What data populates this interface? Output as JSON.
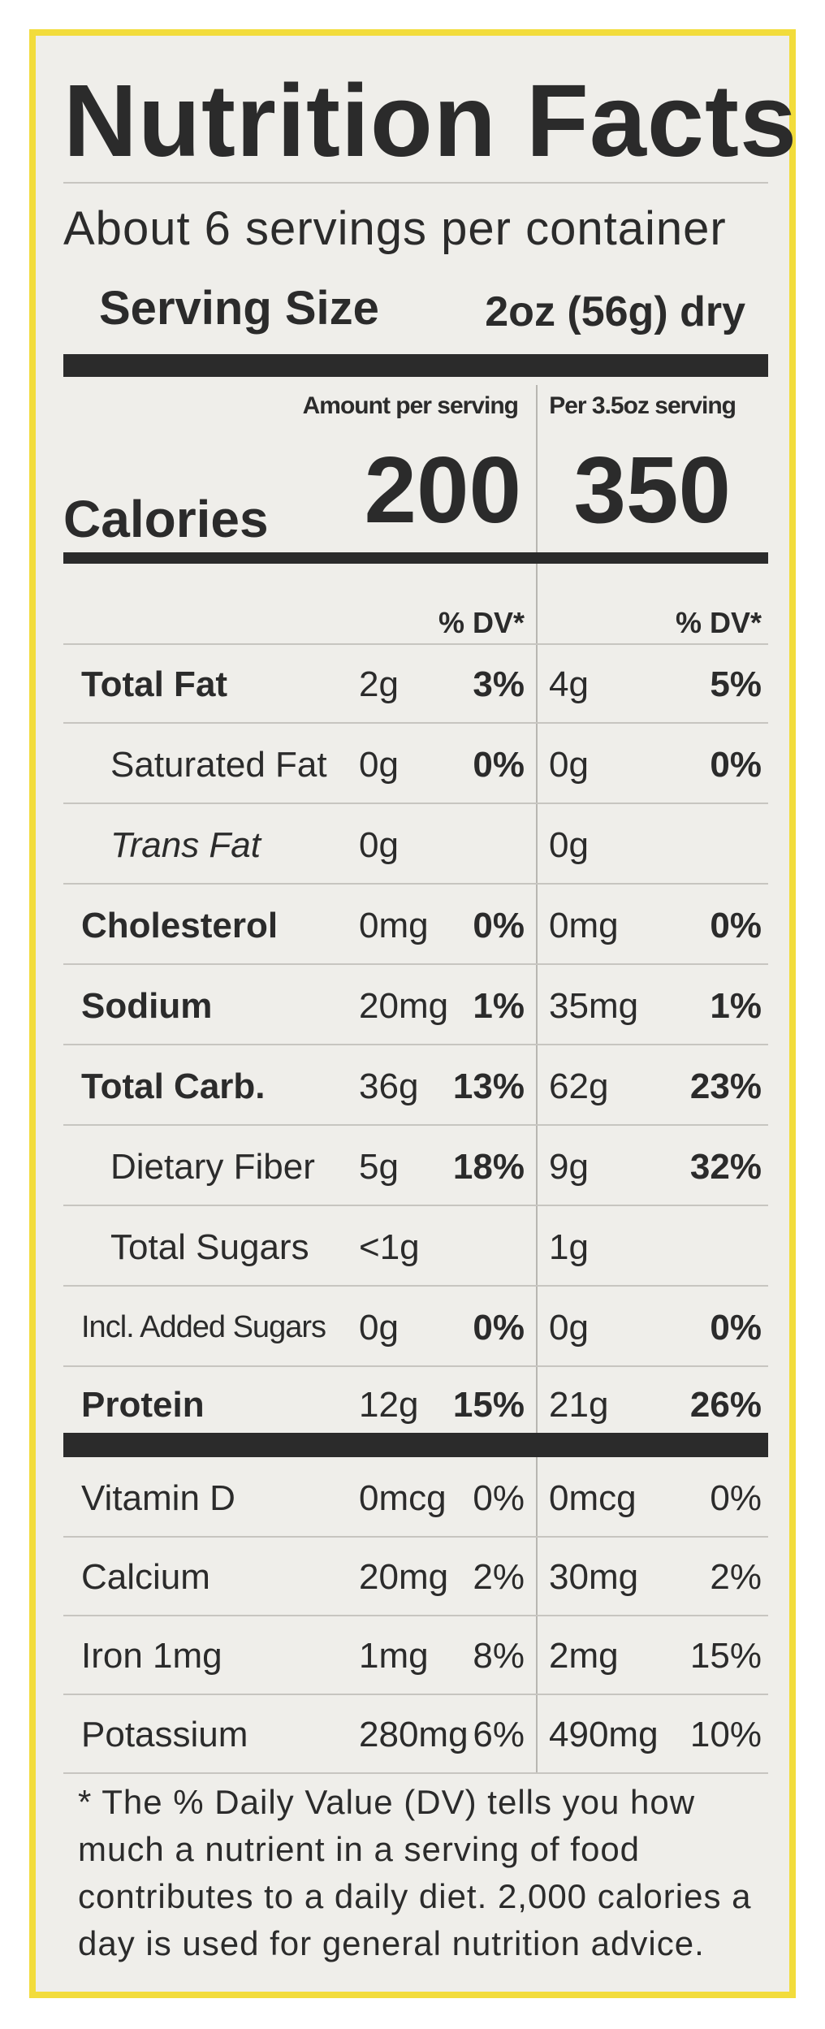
{
  "title": "Nutrition Facts",
  "servings_per_container": "About 6 servings per container",
  "serving_size_label": "Serving Size",
  "serving_size_value": "2oz (56g) dry",
  "amount_per_serving_label": "Amount per serving",
  "per_35oz_label": "Per 3.5oz serving",
  "calories_label": "Calories",
  "calories_serving": "200",
  "calories_35oz": "350",
  "dv_header": "% DV*",
  "nutrients": [
    {
      "name": "Total Fat",
      "amt1": "2g",
      "dv1": "3%",
      "amt2": "4g",
      "dv2": "5%"
    },
    {
      "name": "Saturated Fat",
      "amt1": "0g",
      "dv1": "0%",
      "amt2": "0g",
      "dv2": "0%"
    },
    {
      "name": "Trans Fat",
      "amt1": "0g",
      "dv1": "",
      "amt2": "0g",
      "dv2": ""
    },
    {
      "name": "Cholesterol",
      "amt1": "0mg",
      "dv1": "0%",
      "amt2": "0mg",
      "dv2": "0%"
    },
    {
      "name": "Sodium",
      "amt1": "20mg",
      "dv1": "1%",
      "amt2": "35mg",
      "dv2": "1%"
    },
    {
      "name": "Total Carb.",
      "amt1": "36g",
      "dv1": "13%",
      "amt2": "62g",
      "dv2": "23%"
    },
    {
      "name": "Dietary Fiber",
      "amt1": "5g",
      "dv1": "18%",
      "amt2": "9g",
      "dv2": "32%"
    },
    {
      "name": "Total Sugars",
      "amt1": "<1g",
      "dv1": "",
      "amt2": "1g",
      "dv2": ""
    },
    {
      "name": "Incl. Added Sugars",
      "amt1": "0g",
      "dv1": "0%",
      "amt2": "0g",
      "dv2": "0%"
    },
    {
      "name": "Protein",
      "amt1": "12g",
      "dv1": "15%",
      "amt2": "21g",
      "dv2": "26%"
    }
  ],
  "vitamins": [
    {
      "name": "Vitamin D",
      "amt1": "0mcg",
      "dv1": "0%",
      "amt2": "0mcg",
      "dv2": "0%"
    },
    {
      "name": "Calcium",
      "amt1": "20mg",
      "dv1": "2%",
      "amt2": "30mg",
      "dv2": "2%"
    },
    {
      "name": "Iron 1mg",
      "amt1": "1mg",
      "dv1": "8%",
      "amt2": "2mg",
      "dv2": "15%"
    },
    {
      "name": "Potassium",
      "amt1": "280mg",
      "dv1": "6%",
      "amt2": "490mg",
      "dv2": "10%"
    }
  ],
  "footnote": "* The % Daily Value (DV) tells you how much a nutrient in a serving of food contributes to a daily diet. 2,000 calories a day is used for general nutrition advice.",
  "colors": {
    "frame": "#f2dc3c",
    "panel": "#efeeea",
    "ink": "#2b2b2b"
  }
}
